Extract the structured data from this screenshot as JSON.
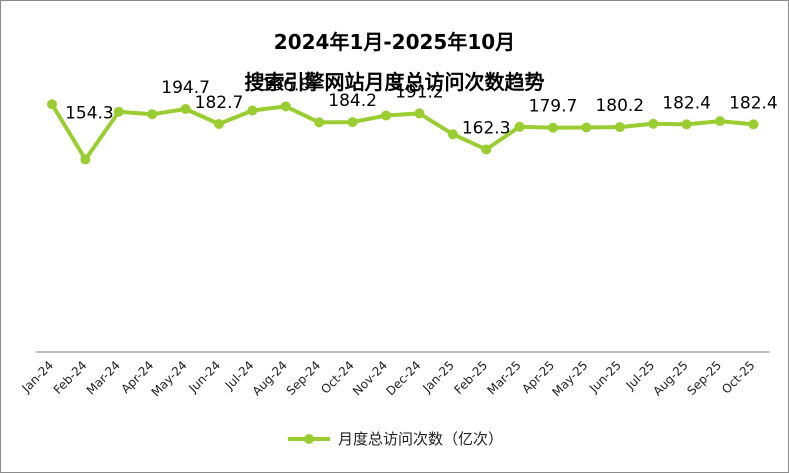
{
  "title_line1": "2024年1月-2025年10月",
  "title_line2": "搜索引擎网站月度总访问次数趋势",
  "colors": {
    "series": "#9acd32",
    "axis": "#7f7f7f",
    "text": "#000000"
  },
  "chart_data": {
    "type": "line",
    "title": "2024年1月-2025年10月 搜索引擎网站月度总访问次数趋势",
    "xlabel": "",
    "ylabel": "",
    "ylim": [
      0,
      250
    ],
    "grid": false,
    "legend_position": "bottom",
    "categories": [
      "Jan-24",
      "Feb-24",
      "Mar-24",
      "Apr-24",
      "May-24",
      "Jun-24",
      "Jul-24",
      "Aug-24",
      "Sep-24",
      "Oct-24",
      "Nov-24",
      "Dec-24",
      "Jan-25",
      "Feb-25",
      "Mar-25",
      "Apr-25",
      "May-25",
      "Jun-25",
      "Jul-25",
      "Aug-25",
      "Sep-25",
      "Oct-25"
    ],
    "series": [
      {
        "name": "月度总访问次数（亿次）",
        "values": [
          198.5,
          154.3,
          192.5,
          190.5,
          194.7,
          182.7,
          193.5,
          196.8,
          184.0,
          184.2,
          189.5,
          191.2,
          174.5,
          162.3,
          180.5,
          179.7,
          179.9,
          180.2,
          182.9,
          182.4,
          185.0,
          182.4
        ]
      }
    ],
    "data_labels": [
      {
        "index": 1,
        "text": "154.3"
      },
      {
        "index": 4,
        "text": "194.7"
      },
      {
        "index": 5,
        "text": "182.7"
      },
      {
        "index": 7,
        "text": "196.8"
      },
      {
        "index": 9,
        "text": "184.2"
      },
      {
        "index": 11,
        "text": "191.2"
      },
      {
        "index": 13,
        "text": "162.3"
      },
      {
        "index": 15,
        "text": "179.7"
      },
      {
        "index": 17,
        "text": "180.2"
      },
      {
        "index": 19,
        "text": "182.4"
      },
      {
        "index": 21,
        "text": "182.4"
      }
    ]
  }
}
